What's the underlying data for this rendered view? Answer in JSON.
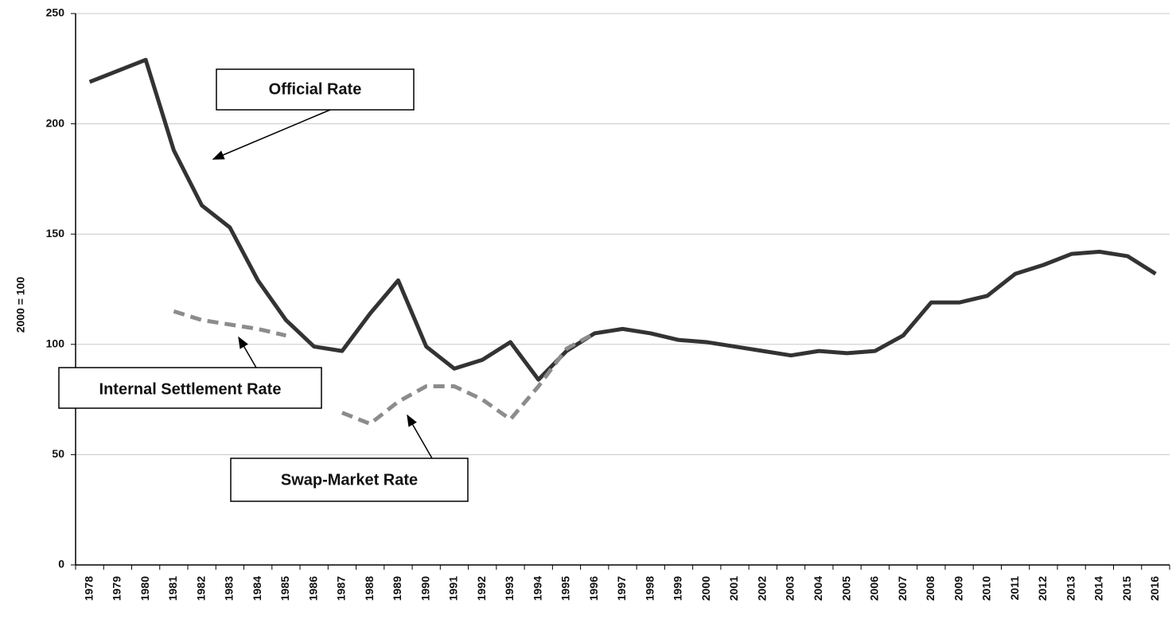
{
  "chart_data": {
    "type": "line",
    "y_label": "2000 = 100",
    "categories": [
      "1978",
      "1979",
      "1980",
      "1981",
      "1982",
      "1983",
      "1984",
      "1985",
      "1986",
      "1987",
      "1988",
      "1989",
      "1990",
      "1991",
      "1992",
      "1993",
      "1994",
      "1995",
      "1996",
      "1997",
      "1998",
      "1999",
      "2000",
      "2001",
      "2002",
      "2003",
      "2004",
      "2005",
      "2006",
      "2007",
      "2008",
      "2009",
      "2010",
      "2011",
      "2012",
      "2013",
      "2014",
      "2015",
      "2016"
    ],
    "series": [
      {
        "name": "Official Rate",
        "color": "#333333",
        "dashed": false,
        "values": [
          219,
          224,
          229,
          188,
          163,
          153,
          129,
          111,
          99,
          97,
          114,
          129,
          99,
          89,
          93,
          101,
          84,
          97,
          105,
          107,
          105,
          102,
          101,
          99,
          97,
          95,
          97,
          96,
          97,
          104,
          119,
          119,
          122,
          132,
          136,
          141,
          142,
          140,
          132
        ]
      },
      {
        "name": "Internal Settlement Rate",
        "color": "#8c8c8c",
        "dashed": true,
        "values": [
          null,
          null,
          null,
          115,
          111,
          109,
          107,
          104,
          null,
          null,
          null,
          null,
          null,
          null,
          null,
          null,
          null,
          null,
          null,
          null,
          null,
          null,
          null,
          null,
          null,
          null,
          null,
          null,
          null,
          null,
          null,
          null,
          null,
          null,
          null,
          null,
          null,
          null,
          null
        ]
      },
      {
        "name": "Swap-Market Rate",
        "color": "#8c8c8c",
        "dashed": true,
        "values": [
          null,
          null,
          null,
          null,
          null,
          null,
          null,
          null,
          null,
          69,
          64,
          74,
          81,
          81,
          75,
          66,
          81,
          98,
          105,
          null,
          null,
          null,
          null,
          null,
          null,
          null,
          null,
          null,
          null,
          null,
          null,
          null,
          null,
          null,
          null,
          null,
          null,
          null,
          null
        ]
      }
    ],
    "ylim": [
      0,
      250
    ],
    "yticks": [
      0,
      50,
      100,
      150,
      200,
      250
    ],
    "grid": true
  }
}
